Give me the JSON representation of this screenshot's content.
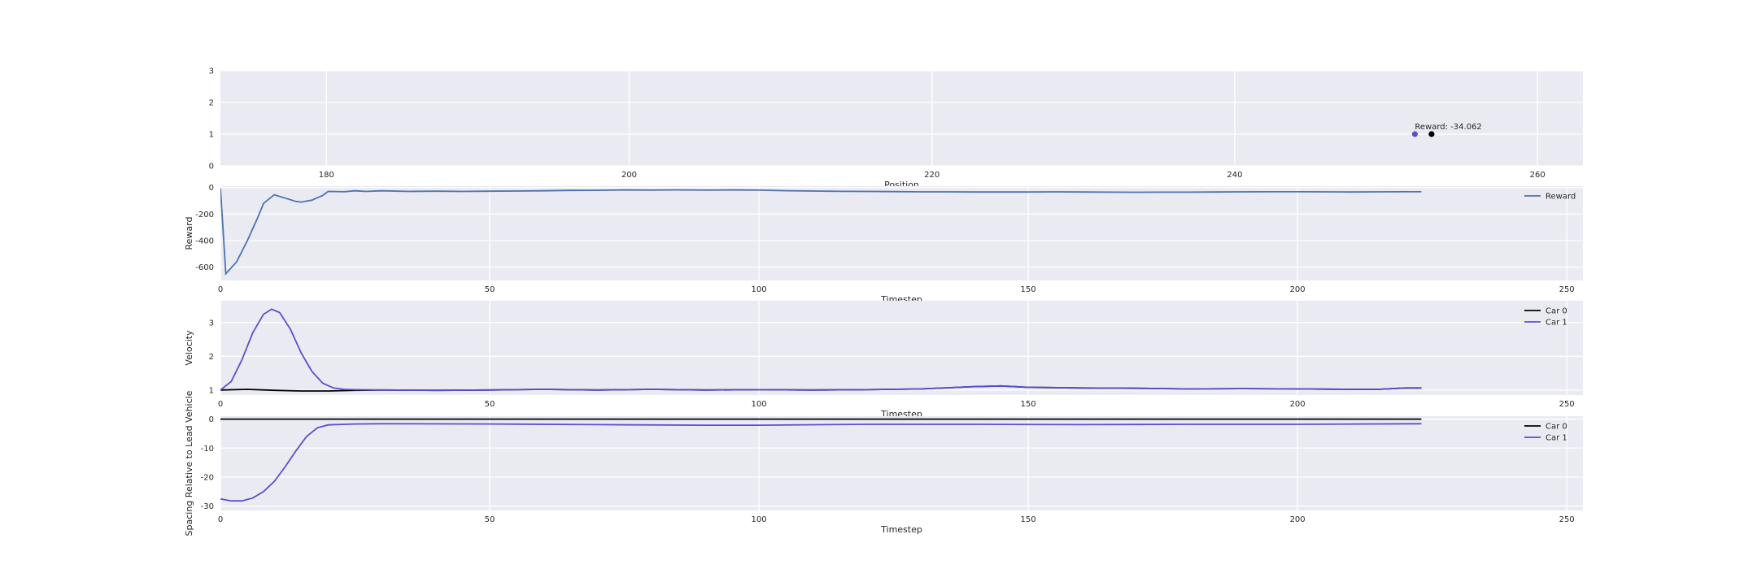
{
  "chart_data": [
    {
      "type": "scatter",
      "xlabel": "Position",
      "ylabel": "",
      "xlim": [
        173,
        263
      ],
      "ylim": [
        0,
        3
      ],
      "xticks": [
        180,
        200,
        220,
        240,
        260
      ],
      "yticks": [
        0,
        1,
        2,
        3
      ],
      "grid": true,
      "points": [
        {
          "x": 251.9,
          "y": 1,
          "color": "#5b4fcf"
        },
        {
          "x": 253.0,
          "y": 1,
          "color": "#000000"
        }
      ],
      "annotations": [
        {
          "text": "Reward: -34.062",
          "x": 251.9,
          "y": 1
        }
      ]
    },
    {
      "type": "line",
      "xlabel": "Timestep",
      "ylabel": "Reward",
      "xlim": [
        0,
        253
      ],
      "ylim": [
        -700,
        10
      ],
      "xticks": [
        0,
        50,
        100,
        150,
        200,
        250
      ],
      "yticks": [
        0,
        -200,
        -400,
        -600
      ],
      "grid": true,
      "legend": "top-right",
      "series": [
        {
          "name": "Reward",
          "color": "#4c72b0",
          "points": [
            [
              0,
              -5
            ],
            [
              1,
              -650
            ],
            [
              3,
              -560
            ],
            [
              5,
              -400
            ],
            [
              7,
              -220
            ],
            [
              8,
              -120
            ],
            [
              10,
              -55
            ],
            [
              12,
              -80
            ],
            [
              14,
              -105
            ],
            [
              15,
              -110
            ],
            [
              17,
              -95
            ],
            [
              19,
              -60
            ],
            [
              20,
              -30
            ],
            [
              23,
              -32
            ],
            [
              25,
              -25
            ],
            [
              27,
              -30
            ],
            [
              30,
              -25
            ],
            [
              35,
              -30
            ],
            [
              40,
              -28
            ],
            [
              45,
              -30
            ],
            [
              50,
              -28
            ],
            [
              55,
              -27
            ],
            [
              60,
              -25
            ],
            [
              65,
              -22
            ],
            [
              70,
              -21
            ],
            [
              75,
              -19
            ],
            [
              80,
              -20
            ],
            [
              85,
              -18
            ],
            [
              90,
              -20
            ],
            [
              95,
              -19
            ],
            [
              100,
              -20
            ],
            [
              105,
              -24
            ],
            [
              110,
              -27
            ],
            [
              115,
              -29
            ],
            [
              120,
              -30
            ],
            [
              125,
              -31
            ],
            [
              130,
              -33
            ],
            [
              135,
              -33
            ],
            [
              140,
              -34
            ],
            [
              145,
              -34
            ],
            [
              150,
              -34
            ],
            [
              155,
              -33
            ],
            [
              160,
              -34
            ],
            [
              165,
              -35
            ],
            [
              170,
              -36
            ],
            [
              175,
              -35
            ],
            [
              180,
              -35
            ],
            [
              185,
              -34
            ],
            [
              190,
              -33
            ],
            [
              195,
              -32
            ],
            [
              200,
              -32
            ],
            [
              205,
              -33
            ],
            [
              210,
              -34
            ],
            [
              215,
              -33
            ],
            [
              220,
              -32
            ],
            [
              223,
              -32
            ]
          ]
        }
      ]
    },
    {
      "type": "line",
      "xlabel": "Timestep",
      "ylabel": "Velocity",
      "xlim": [
        0,
        253
      ],
      "ylim": [
        0.85,
        3.65
      ],
      "xticks": [
        0,
        50,
        100,
        150,
        200,
        250
      ],
      "yticks": [
        1,
        2,
        3
      ],
      "grid": true,
      "legend": "top-right",
      "series": [
        {
          "name": "Car 0",
          "color": "#000000",
          "points": [
            [
              0,
              1.0
            ],
            [
              5,
              1.02
            ],
            [
              10,
              0.99
            ],
            [
              15,
              0.97
            ],
            [
              20,
              0.97
            ],
            [
              25,
              0.99
            ],
            [
              30,
              1.0
            ],
            [
              40,
              0.99
            ],
            [
              50,
              1.0
            ],
            [
              60,
              1.02
            ],
            [
              70,
              1.0
            ],
            [
              80,
              1.02
            ],
            [
              90,
              1.0
            ],
            [
              100,
              1.01
            ],
            [
              110,
              1.0
            ],
            [
              120,
              1.01
            ],
            [
              130,
              1.03
            ],
            [
              140,
              1.1
            ],
            [
              145,
              1.12
            ],
            [
              150,
              1.08
            ],
            [
              160,
              1.06
            ],
            [
              170,
              1.05
            ],
            [
              180,
              1.03
            ],
            [
              190,
              1.04
            ],
            [
              200,
              1.03
            ],
            [
              210,
              1.02
            ],
            [
              215,
              1.02
            ],
            [
              220,
              1.06
            ],
            [
              223,
              1.06
            ]
          ]
        },
        {
          "name": "Car 1",
          "color": "#5b4fcf",
          "points": [
            [
              0,
              1.0
            ],
            [
              2,
              1.25
            ],
            [
              4,
              1.9
            ],
            [
              6,
              2.7
            ],
            [
              8,
              3.25
            ],
            [
              9.5,
              3.4
            ],
            [
              11,
              3.3
            ],
            [
              13,
              2.8
            ],
            [
              15,
              2.1
            ],
            [
              17,
              1.55
            ],
            [
              19,
              1.2
            ],
            [
              21,
              1.06
            ],
            [
              23,
              1.02
            ],
            [
              25,
              1.01
            ],
            [
              30,
              1.0
            ],
            [
              40,
              0.99
            ],
            [
              50,
              1.0
            ],
            [
              60,
              1.02
            ],
            [
              70,
              1.0
            ],
            [
              80,
              1.02
            ],
            [
              90,
              1.0
            ],
            [
              100,
              1.01
            ],
            [
              110,
              1.0
            ],
            [
              120,
              1.01
            ],
            [
              130,
              1.03
            ],
            [
              140,
              1.1
            ],
            [
              145,
              1.12
            ],
            [
              150,
              1.08
            ],
            [
              160,
              1.06
            ],
            [
              170,
              1.05
            ],
            [
              180,
              1.03
            ],
            [
              190,
              1.04
            ],
            [
              200,
              1.03
            ],
            [
              210,
              1.02
            ],
            [
              215,
              1.02
            ],
            [
              220,
              1.06
            ],
            [
              223,
              1.06
            ]
          ]
        }
      ]
    },
    {
      "type": "line",
      "xlabel": "Timestep",
      "ylabel": "Spacing Relative to Lead Vehicle",
      "xlim": [
        0,
        253
      ],
      "ylim": [
        -31.5,
        1
      ],
      "xticks": [
        0,
        50,
        100,
        150,
        200,
        250
      ],
      "yticks": [
        0,
        -10,
        -20,
        -30
      ],
      "grid": true,
      "legend": "top-right",
      "series": [
        {
          "name": "Car 0",
          "color": "#000000",
          "points": [
            [
              0,
              0
            ],
            [
              223,
              0
            ]
          ]
        },
        {
          "name": "Car 1",
          "color": "#5b4fcf",
          "points": [
            [
              0,
              -27.5
            ],
            [
              2,
              -28.2
            ],
            [
              4,
              -28.2
            ],
            [
              6,
              -27.2
            ],
            [
              8,
              -25.0
            ],
            [
              10,
              -21.5
            ],
            [
              12,
              -16.5
            ],
            [
              14,
              -11.0
            ],
            [
              16,
              -6.0
            ],
            [
              18,
              -3.0
            ],
            [
              20,
              -2.0
            ],
            [
              25,
              -1.7
            ],
            [
              30,
              -1.6
            ],
            [
              50,
              -1.7
            ],
            [
              70,
              -1.9
            ],
            [
              90,
              -2.1
            ],
            [
              100,
              -2.1
            ],
            [
              120,
              -1.8
            ],
            [
              140,
              -1.8
            ],
            [
              160,
              -1.9
            ],
            [
              180,
              -1.8
            ],
            [
              200,
              -1.8
            ],
            [
              223,
              -1.6
            ]
          ]
        }
      ]
    }
  ]
}
